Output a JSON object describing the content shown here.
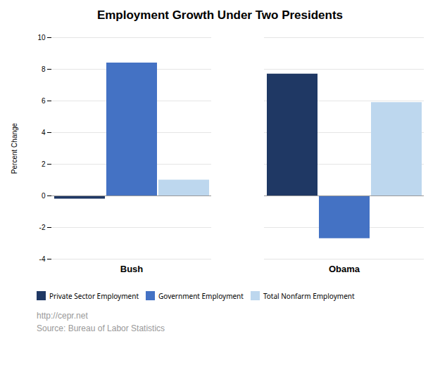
{
  "chart_data": {
    "type": "bar",
    "title": "Employment Growth Under Two Presidents",
    "categories": [
      "Bush",
      "Obama"
    ],
    "series": [
      {
        "name": "Private Sector Employment",
        "color": "#1F3864",
        "values": [
          -0.2,
          7.7
        ]
      },
      {
        "name": "Government Employment",
        "color": "#4472C4",
        "values": [
          8.4,
          -2.7
        ]
      },
      {
        "name": "Total Nonfarm Employment",
        "color": "#BDD7EE",
        "values": [
          1.0,
          5.9
        ]
      }
    ],
    "ylabel": "Percent Change",
    "ylim": [
      -4,
      10
    ],
    "yticks": [
      -4,
      -2,
      0,
      2,
      4,
      6,
      8,
      10
    ],
    "grid": true,
    "legend": "bottom",
    "annotations": [
      "http://cepr.net",
      "Source: Bureau of Labor Statistics"
    ]
  }
}
